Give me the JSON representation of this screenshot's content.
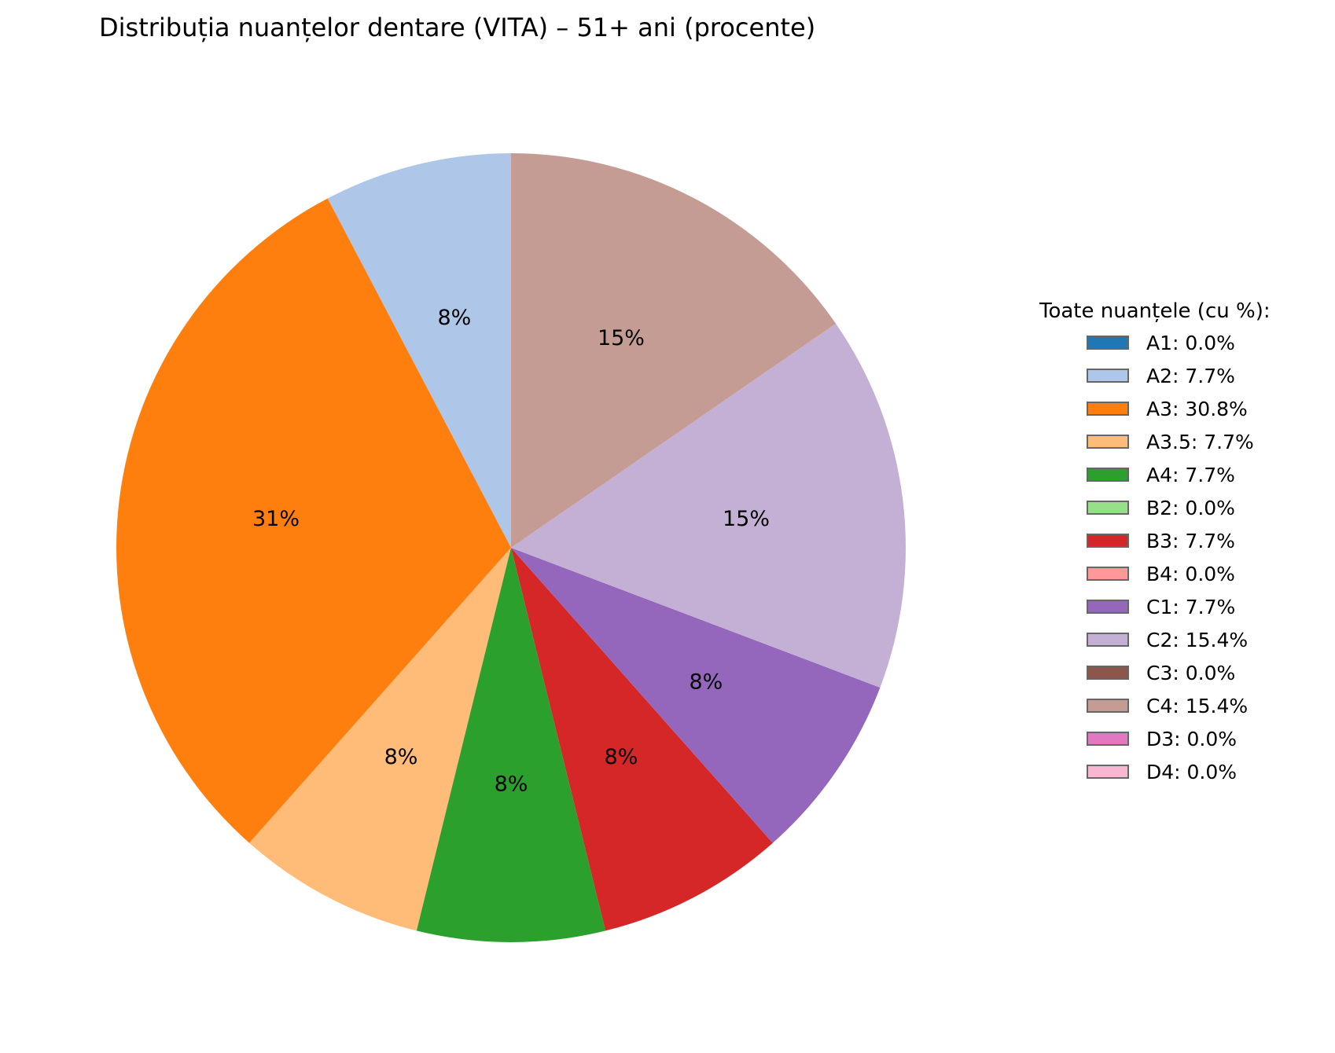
{
  "chart_data": {
    "type": "pie",
    "title": "Distribuția nuanțelor dentare (VITA) – 51+ ani (procente)",
    "legend_title": "Toate nuanțele (cu %):",
    "legend_placement": "right",
    "start_angle_deg": 90,
    "direction": "counterclockwise",
    "slices": [
      {
        "label": "A1",
        "value": 0.0,
        "color": "#1f77b4",
        "legend_text": "A1: 0.0%",
        "slice_text": ""
      },
      {
        "label": "A2",
        "value": 7.7,
        "color": "#aec7e8",
        "legend_text": "A2: 7.7%",
        "slice_text": "8%"
      },
      {
        "label": "A3",
        "value": 30.8,
        "color": "#ff7f0e",
        "legend_text": "A3: 30.8%",
        "slice_text": "31%"
      },
      {
        "label": "A3.5",
        "value": 7.7,
        "color": "#ffbb78",
        "legend_text": "A3.5: 7.7%",
        "slice_text": "8%"
      },
      {
        "label": "A4",
        "value": 7.7,
        "color": "#2ca02c",
        "legend_text": "A4: 7.7%",
        "slice_text": "8%"
      },
      {
        "label": "B2",
        "value": 0.0,
        "color": "#98df8a",
        "legend_text": "B2: 0.0%",
        "slice_text": ""
      },
      {
        "label": "B3",
        "value": 7.7,
        "color": "#d62728",
        "legend_text": "B3: 7.7%",
        "slice_text": "8%"
      },
      {
        "label": "B4",
        "value": 0.0,
        "color": "#ff9896",
        "legend_text": "B4: 0.0%",
        "slice_text": ""
      },
      {
        "label": "C1",
        "value": 7.7,
        "color": "#9467bd",
        "legend_text": "C1: 7.7%",
        "slice_text": "8%"
      },
      {
        "label": "C2",
        "value": 15.4,
        "color": "#c5b0d5",
        "legend_text": "C2: 15.4%",
        "slice_text": "15%"
      },
      {
        "label": "C3",
        "value": 0.0,
        "color": "#8c564b",
        "legend_text": "C3: 0.0%",
        "slice_text": ""
      },
      {
        "label": "C4",
        "value": 15.4,
        "color": "#c49c94",
        "legend_text": "C4: 15.4%",
        "slice_text": "15%"
      },
      {
        "label": "D3",
        "value": 0.0,
        "color": "#e377c2",
        "legend_text": "D3: 0.0%",
        "slice_text": ""
      },
      {
        "label": "D4",
        "value": 0.0,
        "color": "#f7b6d2",
        "legend_text": "D4: 0.0%",
        "slice_text": ""
      }
    ]
  }
}
